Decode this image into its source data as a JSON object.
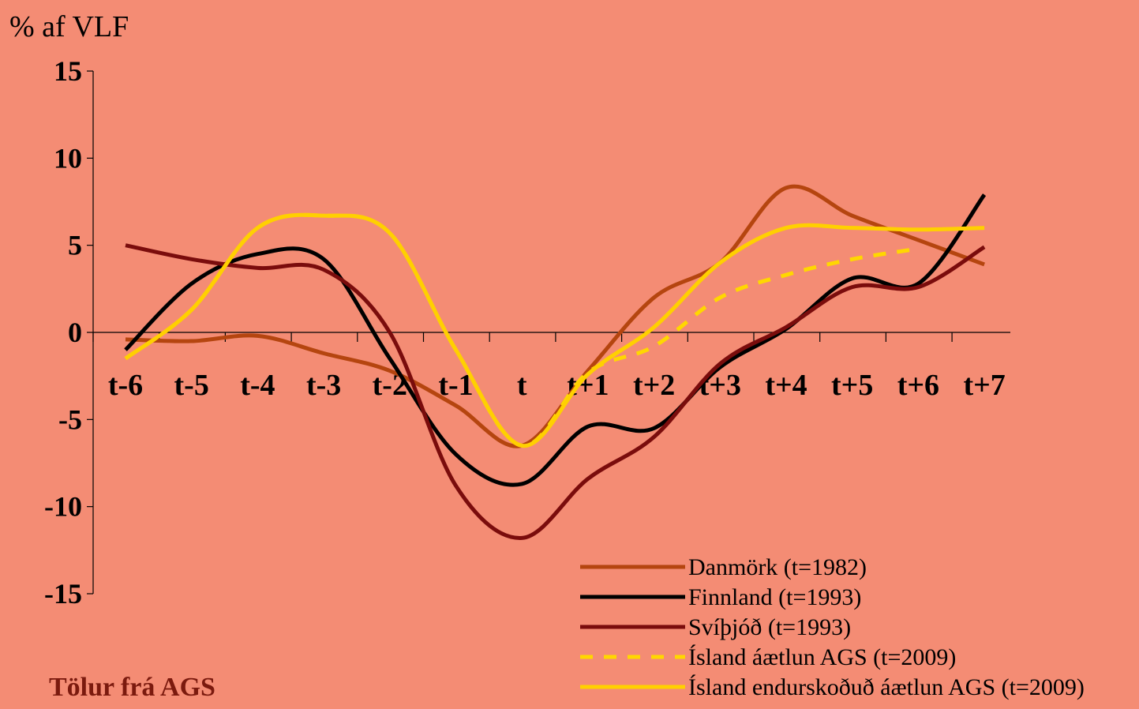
{
  "unit_label": "% af VLF",
  "source_note": "Tölur frá AGS",
  "chart_data": {
    "type": "line",
    "title": "",
    "xlabel": "",
    "ylabel": "% af VLF",
    "ylim": [
      -15,
      15
    ],
    "yticks": [
      15,
      10,
      5,
      0,
      -5,
      -10,
      -15
    ],
    "grid": false,
    "legend_position": "bottom-right",
    "categories": [
      "t-6",
      "t-5",
      "t-4",
      "t-3",
      "t-2",
      "t-1",
      "t",
      "t+1",
      "t+2",
      "t+3",
      "t+4",
      "t+5",
      "t+6",
      "t+7"
    ],
    "series": [
      {
        "name": "Danmörk (t=1982)",
        "color": "#B5450F",
        "dash": false,
        "values": [
          -0.4,
          -0.5,
          -0.2,
          -1.2,
          -2.2,
          -4.2,
          -6.5,
          -2.2,
          2.0,
          4.0,
          8.3,
          6.7,
          5.3,
          3.9
        ]
      },
      {
        "name": "Finnland (t=1993)",
        "color": "#000000",
        "dash": false,
        "values": [
          -1.0,
          2.8,
          4.5,
          4.2,
          -1.5,
          -7.0,
          -8.7,
          -5.4,
          -5.5,
          -2.0,
          0.2,
          3.1,
          2.8,
          7.9
        ]
      },
      {
        "name": "Svíþjóð (t=1993)",
        "color": "#7A0C0C",
        "dash": false,
        "values": [
          5.0,
          4.2,
          3.7,
          3.6,
          0.0,
          -8.8,
          -11.8,
          -8.4,
          -6.0,
          -1.8,
          0.3,
          2.6,
          2.6,
          4.9
        ]
      },
      {
        "name": "Ísland áætlun AGS (t=2009)",
        "color": "#FFD700",
        "dash": true,
        "values": [
          -1.5,
          1.3,
          6.0,
          6.7,
          5.7,
          -1.0,
          -6.5,
          -2.3,
          -0.8,
          2.0,
          3.3,
          4.2,
          4.8,
          null
        ]
      },
      {
        "name": "Ísland endurskoðuð áætlun AGS (t=2009)",
        "color": "#FFD000",
        "dash": false,
        "values": [
          -1.5,
          1.3,
          6.0,
          6.7,
          5.7,
          -1.0,
          -6.5,
          -2.4,
          0.3,
          4.0,
          6.0,
          6.0,
          5.9,
          6.0
        ]
      }
    ]
  }
}
